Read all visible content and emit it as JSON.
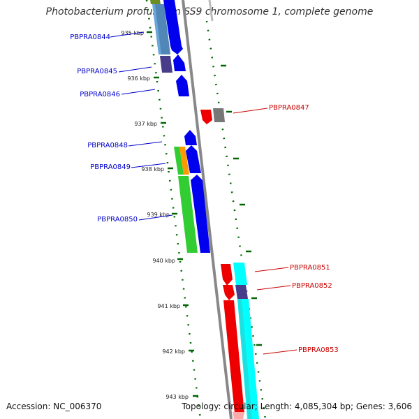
{
  "title": "Photobacterium profundum SS9 chromosome 1, complete genome",
  "accession_text": "Accession: NC_006370",
  "topology_text": "Topology: circular; Length: 4,085,304 bp; Genes: 3,606",
  "colors": {
    "forward_label": "#0000cc",
    "reverse_label": "#cc0000",
    "tick": "#006600",
    "backbone": "#888888"
  },
  "kbp_ticks": [
    "935 kbp",
    "936 kbp",
    "937 kbp",
    "938 kbp",
    "939 kbp",
    "940 kbp",
    "941 kbp",
    "942 kbp",
    "943 kbp"
  ],
  "genes": [
    {
      "label": "PBPRA0844",
      "strand": "forward"
    },
    {
      "label": "PBPRA0845",
      "strand": "forward"
    },
    {
      "label": "PBPRA0846",
      "strand": "forward"
    },
    {
      "label": "PBPRA0847",
      "strand": "reverse"
    },
    {
      "label": "PBPRA0848",
      "strand": "forward"
    },
    {
      "label": "PBPRA0849",
      "strand": "forward"
    },
    {
      "label": "PBPRA0850",
      "strand": "forward"
    },
    {
      "label": "PBPRA0851",
      "strand": "reverse"
    },
    {
      "label": "PBPRA0852",
      "strand": "reverse"
    },
    {
      "label": "PBPRA0853",
      "strand": "reverse"
    }
  ]
}
